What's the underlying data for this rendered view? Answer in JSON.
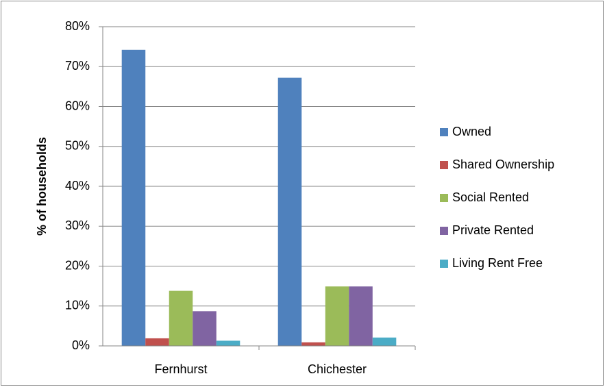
{
  "chart_data": {
    "type": "bar",
    "y_label": "% of households",
    "categories": [
      "Fernhurst",
      "Chichester"
    ],
    "series": [
      {
        "name": "Owned",
        "color": "#4f81bd",
        "values": [
          74.2,
          67.2
        ]
      },
      {
        "name": "Shared Ownership",
        "color": "#c0504d",
        "values": [
          1.9,
          0.9
        ]
      },
      {
        "name": "Social Rented",
        "color": "#9bbb59",
        "values": [
          13.8,
          14.9
        ]
      },
      {
        "name": "Private Rented",
        "color": "#8064a2",
        "values": [
          8.7,
          14.9
        ]
      },
      {
        "name": "Living Rent Free",
        "color": "#4bacc6",
        "values": [
          1.3,
          2.1
        ]
      }
    ],
    "ylim": [
      0,
      80
    ],
    "yticks": [
      {
        "value": 0,
        "label": "0%"
      },
      {
        "value": 10,
        "label": "10%"
      },
      {
        "value": 20,
        "label": "20%"
      },
      {
        "value": 30,
        "label": "30%"
      },
      {
        "value": 40,
        "label": "40%"
      },
      {
        "value": 50,
        "label": "50%"
      },
      {
        "value": 60,
        "label": "60%"
      },
      {
        "value": 70,
        "label": "70%"
      },
      {
        "value": 80,
        "label": "80%"
      }
    ],
    "grid": true,
    "legend": "right"
  }
}
